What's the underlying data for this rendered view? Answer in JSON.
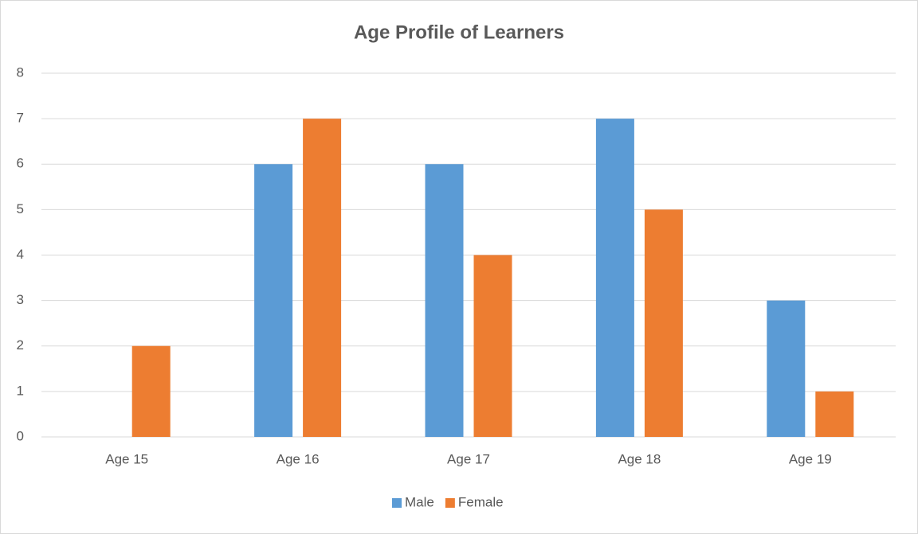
{
  "chart_data": {
    "type": "bar",
    "title": "Age Profile of Learners",
    "categories": [
      "Age 15",
      "Age 16",
      "Age 17",
      "Age 18",
      "Age 19"
    ],
    "series": [
      {
        "name": "Male",
        "color": "#5b9bd5",
        "values": [
          0,
          6,
          6,
          7,
          3
        ]
      },
      {
        "name": "Female",
        "color": "#ed7d31",
        "values": [
          2,
          7,
          4,
          5,
          1
        ]
      }
    ],
    "ylim": [
      0,
      8
    ],
    "yticks": [
      0,
      1,
      2,
      3,
      4,
      5,
      6,
      7,
      8
    ],
    "grid": true,
    "legend": "bottom"
  }
}
